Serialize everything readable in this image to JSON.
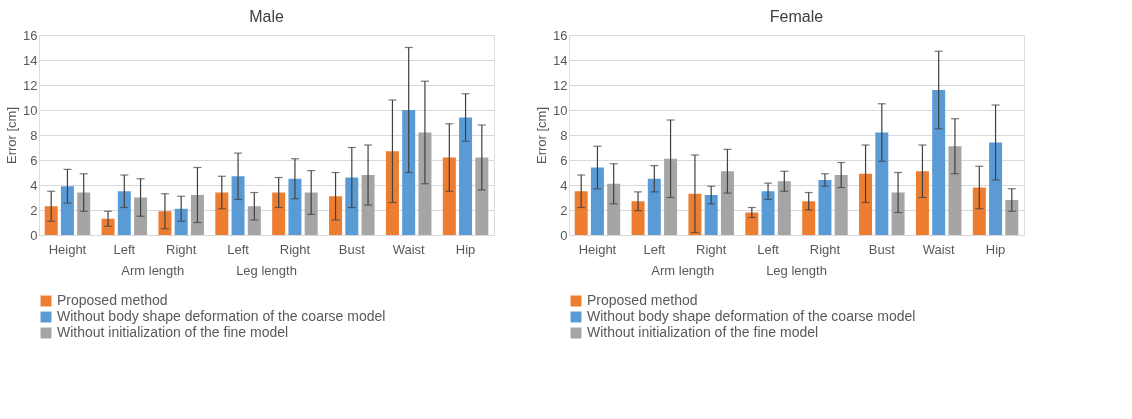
{
  "chart_data": [
    {
      "type": "bar",
      "title": "Male",
      "ylabel": "Error [cm]",
      "categories": [
        "Height",
        "Left",
        "Right",
        "Left",
        "Right",
        "Bust",
        "Waist",
        "Hip"
      ],
      "annotations": [
        "Arm length",
        "Leg length"
      ],
      "ylim": [
        0,
        16
      ],
      "yticks": [
        0,
        2,
        4,
        6,
        8,
        10,
        12,
        14,
        16
      ],
      "grid": "y",
      "legend": "bottom",
      "series": [
        {
          "name": "Proposed method",
          "color": "#ed7d31",
          "values": [
            2.3,
            1.3,
            1.9,
            3.4,
            3.4,
            3.1,
            6.7,
            6.2
          ],
          "errors": [
            1.2,
            0.6,
            1.4,
            1.3,
            1.2,
            1.9,
            4.1,
            2.7
          ]
        },
        {
          "name": "Without body shape deformation of the coarse model",
          "color": "#5b9bd5",
          "values": [
            3.9,
            3.5,
            2.1,
            4.7,
            4.5,
            4.6,
            10.0,
            9.4
          ],
          "errors": [
            1.35,
            1.3,
            1.0,
            1.85,
            1.6,
            2.4,
            5.0,
            1.9
          ]
        },
        {
          "name": "Without initialization of the fine model",
          "color": "#a5a5a5",
          "values": [
            3.4,
            3.0,
            3.2,
            2.3,
            3.4,
            4.8,
            8.2,
            6.2
          ],
          "errors": [
            1.5,
            1.5,
            2.2,
            1.1,
            1.75,
            2.4,
            4.1,
            2.6
          ]
        }
      ]
    },
    {
      "type": "bar",
      "title": "Female",
      "ylabel": "Error [cm]",
      "categories": [
        "Height",
        "Left",
        "Right",
        "Left",
        "Right",
        "Bust",
        "Waist",
        "Hip"
      ],
      "annotations": [
        "Arm length",
        "Leg length"
      ],
      "ylim": [
        0,
        16
      ],
      "yticks": [
        0,
        2,
        4,
        6,
        8,
        10,
        12,
        14,
        16
      ],
      "grid": "y",
      "legend": "bottom",
      "series": [
        {
          "name": "Proposed method",
          "color": "#ed7d31",
          "values": [
            3.5,
            2.7,
            3.3,
            1.8,
            2.7,
            4.9,
            5.1,
            3.8
          ],
          "errors": [
            1.3,
            0.75,
            3.1,
            0.4,
            0.7,
            2.3,
            2.1,
            1.7
          ]
        },
        {
          "name": "Without body shape deformation of the coarse model",
          "color": "#5b9bd5",
          "values": [
            5.4,
            4.5,
            3.2,
            3.5,
            4.4,
            8.2,
            11.6,
            7.4
          ],
          "errors": [
            1.7,
            1.05,
            0.7,
            0.65,
            0.5,
            2.3,
            3.1,
            3.0
          ]
        },
        {
          "name": "Without initialization of the fine model",
          "color": "#a5a5a5",
          "values": [
            4.1,
            6.1,
            5.1,
            4.3,
            4.8,
            3.4,
            7.1,
            2.8
          ],
          "errors": [
            1.6,
            3.1,
            1.75,
            0.8,
            1.0,
            1.6,
            2.2,
            0.9
          ]
        }
      ]
    }
  ]
}
